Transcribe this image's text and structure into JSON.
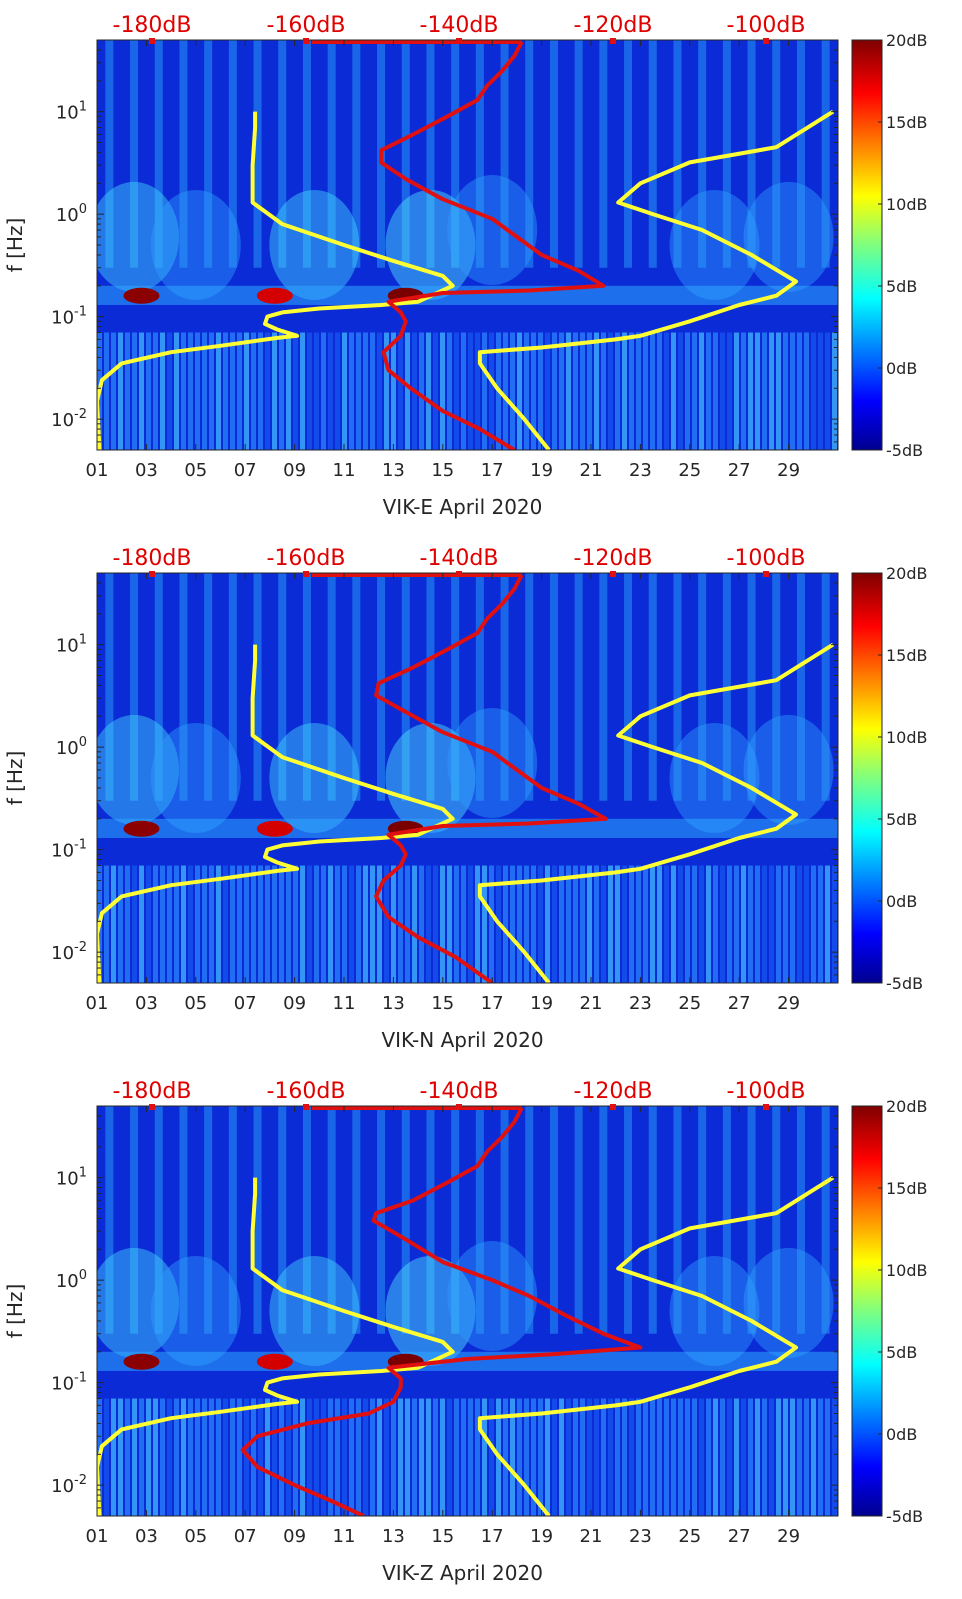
{
  "chart_data": [
    {
      "type": "heatmap",
      "xlabel": "VIK-E April 2020",
      "ylabel": "f [Hz]",
      "x_ticks": [
        "01",
        "03",
        "05",
        "07",
        "09",
        "11",
        "13",
        "15",
        "17",
        "19",
        "21",
        "23",
        "25",
        "27",
        "29"
      ],
      "x_tick_days": [
        1,
        3,
        5,
        7,
        9,
        11,
        13,
        15,
        17,
        19,
        21,
        23,
        25,
        27,
        29
      ],
      "xlim": [
        1,
        31
      ],
      "y_scale": "log",
      "ylim": [
        0.005,
        50
      ],
      "y_ticks": [
        {
          "base": "10",
          "exp": "-2",
          "value": 0.01
        },
        {
          "base": "10",
          "exp": "-1",
          "value": 0.1
        },
        {
          "base": "10",
          "exp": "0",
          "value": 1
        },
        {
          "base": "10",
          "exp": "1",
          "value": 10
        }
      ],
      "top_db_labels": [
        "-180dB",
        "-160dB",
        "-140dB",
        "-120dB",
        "-100dB"
      ],
      "colorbar": {
        "labels": [
          "20dB",
          "15dB",
          "10dB",
          "5dB",
          "0dB",
          "-5dB"
        ],
        "range": [
          -5,
          20
        ]
      },
      "series": [
        {
          "color": "#ffff33",
          "points": [
            [
              1.1,
              0.005
            ],
            [
              1,
              0.015
            ],
            [
              1.2,
              0.024
            ],
            [
              2,
              0.035
            ],
            [
              4,
              0.045
            ],
            [
              6,
              0.052
            ],
            [
              8.3,
              0.062
            ],
            [
              9.1,
              0.065
            ],
            [
              8.3,
              0.075
            ],
            [
              7.8,
              0.085
            ],
            [
              7.9,
              0.1
            ],
            [
              8.5,
              0.11
            ],
            [
              10,
              0.12
            ],
            [
              12.5,
              0.13
            ],
            [
              14,
              0.14
            ],
            [
              15.4,
              0.2
            ],
            [
              15,
              0.25
            ],
            [
              13,
              0.35
            ],
            [
              11,
              0.5
            ],
            [
              8.5,
              0.8
            ],
            [
              7.3,
              1.3
            ],
            [
              7.3,
              3
            ],
            [
              7.4,
              7
            ],
            [
              7.4,
              10
            ]
          ]
        },
        {
          "color": "#ffff33",
          "points": [
            [
              19.3,
              0.005
            ],
            [
              18.3,
              0.01
            ],
            [
              17.2,
              0.02
            ],
            [
              16.5,
              0.035
            ],
            [
              16.5,
              0.045
            ],
            [
              19,
              0.05
            ],
            [
              22,
              0.06
            ],
            [
              23,
              0.065
            ],
            [
              25,
              0.09
            ],
            [
              27,
              0.13
            ],
            [
              28.5,
              0.16
            ],
            [
              29.3,
              0.22
            ],
            [
              27.5,
              0.4
            ],
            [
              25.5,
              0.7
            ],
            [
              23.5,
              1
            ],
            [
              22.1,
              1.3
            ],
            [
              23,
              2
            ],
            [
              25,
              3.2
            ],
            [
              28.5,
              4.5
            ],
            [
              30.8,
              10
            ]
          ]
        },
        {
          "color": "#e01010",
          "points": [
            [
              17.9,
              0.005
            ],
            [
              16.5,
              0.008
            ],
            [
              15,
              0.012
            ],
            [
              13.7,
              0.02
            ],
            [
              12.8,
              0.03
            ],
            [
              12.6,
              0.045
            ],
            [
              13.3,
              0.065
            ],
            [
              13.5,
              0.09
            ],
            [
              13.3,
              0.11
            ],
            [
              12.8,
              0.14
            ],
            [
              15,
              0.17
            ],
            [
              18.5,
              0.18
            ],
            [
              21.5,
              0.2
            ],
            [
              20.5,
              0.28
            ],
            [
              19,
              0.4
            ],
            [
              18,
              0.6
            ],
            [
              17,
              0.9
            ],
            [
              15,
              1.4
            ],
            [
              13.5,
              2.2
            ],
            [
              12.5,
              3.2
            ],
            [
              12.5,
              4.2
            ],
            [
              13.8,
              6
            ],
            [
              15.2,
              9
            ],
            [
              16.4,
              13
            ],
            [
              16.8,
              18
            ],
            [
              17.4,
              25
            ],
            [
              17.9,
              35
            ],
            [
              18.2,
              48
            ]
          ]
        }
      ]
    },
    {
      "type": "heatmap",
      "xlabel": "VIK-N April 2020",
      "ylabel": "f [Hz]",
      "x_ticks": [
        "01",
        "03",
        "05",
        "07",
        "09",
        "11",
        "13",
        "15",
        "17",
        "19",
        "21",
        "23",
        "25",
        "27",
        "29"
      ],
      "x_tick_days": [
        1,
        3,
        5,
        7,
        9,
        11,
        13,
        15,
        17,
        19,
        21,
        23,
        25,
        27,
        29
      ],
      "xlim": [
        1,
        31
      ],
      "y_scale": "log",
      "ylim": [
        0.005,
        50
      ],
      "y_ticks": [
        {
          "base": "10",
          "exp": "-2",
          "value": 0.01
        },
        {
          "base": "10",
          "exp": "-1",
          "value": 0.1
        },
        {
          "base": "10",
          "exp": "0",
          "value": 1
        },
        {
          "base": "10",
          "exp": "1",
          "value": 10
        }
      ],
      "top_db_labels": [
        "-180dB",
        "-160dB",
        "-140dB",
        "-120dB",
        "-100dB"
      ],
      "colorbar": {
        "labels": [
          "20dB",
          "15dB",
          "10dB",
          "5dB",
          "0dB",
          "-5dB"
        ],
        "range": [
          -5,
          20
        ]
      },
      "series": [
        {
          "color": "#ffff33",
          "points": [
            [
              1.1,
              0.005
            ],
            [
              1,
              0.015
            ],
            [
              1.2,
              0.024
            ],
            [
              2,
              0.035
            ],
            [
              4,
              0.045
            ],
            [
              6,
              0.052
            ],
            [
              8.3,
              0.062
            ],
            [
              9.1,
              0.065
            ],
            [
              8.3,
              0.075
            ],
            [
              7.8,
              0.085
            ],
            [
              7.9,
              0.1
            ],
            [
              8.5,
              0.11
            ],
            [
              10,
              0.12
            ],
            [
              12.5,
              0.13
            ],
            [
              14,
              0.14
            ],
            [
              15.4,
              0.2
            ],
            [
              15,
              0.25
            ],
            [
              13,
              0.35
            ],
            [
              11,
              0.5
            ],
            [
              8.5,
              0.8
            ],
            [
              7.3,
              1.3
            ],
            [
              7.3,
              3
            ],
            [
              7.4,
              7
            ],
            [
              7.4,
              10
            ]
          ]
        },
        {
          "color": "#ffff33",
          "points": [
            [
              19.3,
              0.005
            ],
            [
              18.3,
              0.01
            ],
            [
              17.2,
              0.02
            ],
            [
              16.5,
              0.035
            ],
            [
              16.5,
              0.045
            ],
            [
              19,
              0.05
            ],
            [
              22,
              0.06
            ],
            [
              23,
              0.065
            ],
            [
              25,
              0.09
            ],
            [
              27,
              0.13
            ],
            [
              28.5,
              0.16
            ],
            [
              29.3,
              0.22
            ],
            [
              27.5,
              0.4
            ],
            [
              25.5,
              0.7
            ],
            [
              23.5,
              1
            ],
            [
              22.1,
              1.3
            ],
            [
              23,
              2
            ],
            [
              25,
              3.2
            ],
            [
              28.5,
              4.5
            ],
            [
              30.8,
              10
            ]
          ]
        },
        {
          "color": "#e01010",
          "points": [
            [
              17,
              0.005
            ],
            [
              15.5,
              0.009
            ],
            [
              14,
              0.014
            ],
            [
              12.8,
              0.022
            ],
            [
              12.3,
              0.035
            ],
            [
              12.6,
              0.05
            ],
            [
              13.3,
              0.07
            ],
            [
              13.5,
              0.09
            ],
            [
              13.3,
              0.11
            ],
            [
              12.8,
              0.14
            ],
            [
              15,
              0.17
            ],
            [
              18.5,
              0.18
            ],
            [
              21.6,
              0.2
            ],
            [
              20.5,
              0.28
            ],
            [
              19,
              0.4
            ],
            [
              18,
              0.6
            ],
            [
              17,
              0.9
            ],
            [
              15,
              1.4
            ],
            [
              13.5,
              2.2
            ],
            [
              12.3,
              3.2
            ],
            [
              12.4,
              4.2
            ],
            [
              13.8,
              6
            ],
            [
              15.2,
              9
            ],
            [
              16.4,
              13
            ],
            [
              16.8,
              18
            ],
            [
              17.4,
              25
            ],
            [
              17.9,
              35
            ],
            [
              18.2,
              48
            ]
          ]
        }
      ]
    },
    {
      "type": "heatmap",
      "xlabel": "VIK-Z April 2020",
      "ylabel": "f [Hz]",
      "x_ticks": [
        "01",
        "03",
        "05",
        "07",
        "09",
        "11",
        "13",
        "15",
        "17",
        "19",
        "21",
        "23",
        "25",
        "27",
        "29"
      ],
      "x_tick_days": [
        1,
        3,
        5,
        7,
        9,
        11,
        13,
        15,
        17,
        19,
        21,
        23,
        25,
        27,
        29
      ],
      "xlim": [
        1,
        31
      ],
      "y_scale": "log",
      "ylim": [
        0.005,
        50
      ],
      "y_ticks": [
        {
          "base": "10",
          "exp": "-2",
          "value": 0.01
        },
        {
          "base": "10",
          "exp": "-1",
          "value": 0.1
        },
        {
          "base": "10",
          "exp": "0",
          "value": 1
        },
        {
          "base": "10",
          "exp": "1",
          "value": 10
        }
      ],
      "top_db_labels": [
        "-180dB",
        "-160dB",
        "-140dB",
        "-120dB",
        "-100dB"
      ],
      "colorbar": {
        "labels": [
          "20dB",
          "15dB",
          "10dB",
          "5dB",
          "0dB",
          "-5dB"
        ],
        "range": [
          -5,
          20
        ]
      },
      "series": [
        {
          "color": "#ffff33",
          "points": [
            [
              1.1,
              0.005
            ],
            [
              1,
              0.015
            ],
            [
              1.2,
              0.024
            ],
            [
              2,
              0.035
            ],
            [
              4,
              0.045
            ],
            [
              6,
              0.052
            ],
            [
              8.3,
              0.062
            ],
            [
              9.1,
              0.065
            ],
            [
              8.3,
              0.075
            ],
            [
              7.8,
              0.085
            ],
            [
              7.9,
              0.1
            ],
            [
              8.5,
              0.11
            ],
            [
              10,
              0.12
            ],
            [
              12.5,
              0.13
            ],
            [
              14,
              0.14
            ],
            [
              15.4,
              0.2
            ],
            [
              15,
              0.25
            ],
            [
              13,
              0.35
            ],
            [
              11,
              0.5
            ],
            [
              8.5,
              0.8
            ],
            [
              7.3,
              1.3
            ],
            [
              7.3,
              3
            ],
            [
              7.4,
              7
            ],
            [
              7.4,
              10
            ]
          ]
        },
        {
          "color": "#ffff33",
          "points": [
            [
              19.3,
              0.005
            ],
            [
              18.3,
              0.01
            ],
            [
              17.2,
              0.02
            ],
            [
              16.5,
              0.035
            ],
            [
              16.5,
              0.045
            ],
            [
              19,
              0.05
            ],
            [
              22,
              0.06
            ],
            [
              23,
              0.065
            ],
            [
              25,
              0.09
            ],
            [
              27,
              0.13
            ],
            [
              28.5,
              0.16
            ],
            [
              29.3,
              0.22
            ],
            [
              27.5,
              0.4
            ],
            [
              25.5,
              0.7
            ],
            [
              23.5,
              1
            ],
            [
              22.1,
              1.3
            ],
            [
              23,
              2
            ],
            [
              25,
              3.2
            ],
            [
              28.5,
              4.5
            ],
            [
              30.8,
              10
            ]
          ]
        },
        {
          "color": "#e01010",
          "points": [
            [
              11.8,
              0.005
            ],
            [
              10.5,
              0.007
            ],
            [
              9,
              0.01
            ],
            [
              7.5,
              0.015
            ],
            [
              6.9,
              0.022
            ],
            [
              7.5,
              0.03
            ],
            [
              9.5,
              0.04
            ],
            [
              12,
              0.05
            ],
            [
              13,
              0.065
            ],
            [
              13.3,
              0.09
            ],
            [
              13.3,
              0.11
            ],
            [
              12.8,
              0.14
            ],
            [
              16,
              0.17
            ],
            [
              19.5,
              0.19
            ],
            [
              23,
              0.22
            ],
            [
              21.5,
              0.3
            ],
            [
              20,
              0.45
            ],
            [
              18.5,
              0.7
            ],
            [
              17,
              1
            ],
            [
              15,
              1.5
            ],
            [
              13.5,
              2.5
            ],
            [
              12.2,
              3.8
            ],
            [
              12.3,
              4.5
            ],
            [
              13.8,
              6
            ],
            [
              15.2,
              9
            ],
            [
              16.4,
              13
            ],
            [
              16.8,
              18
            ],
            [
              17.4,
              25
            ],
            [
              17.9,
              35
            ],
            [
              18.2,
              48
            ]
          ]
        }
      ]
    }
  ]
}
